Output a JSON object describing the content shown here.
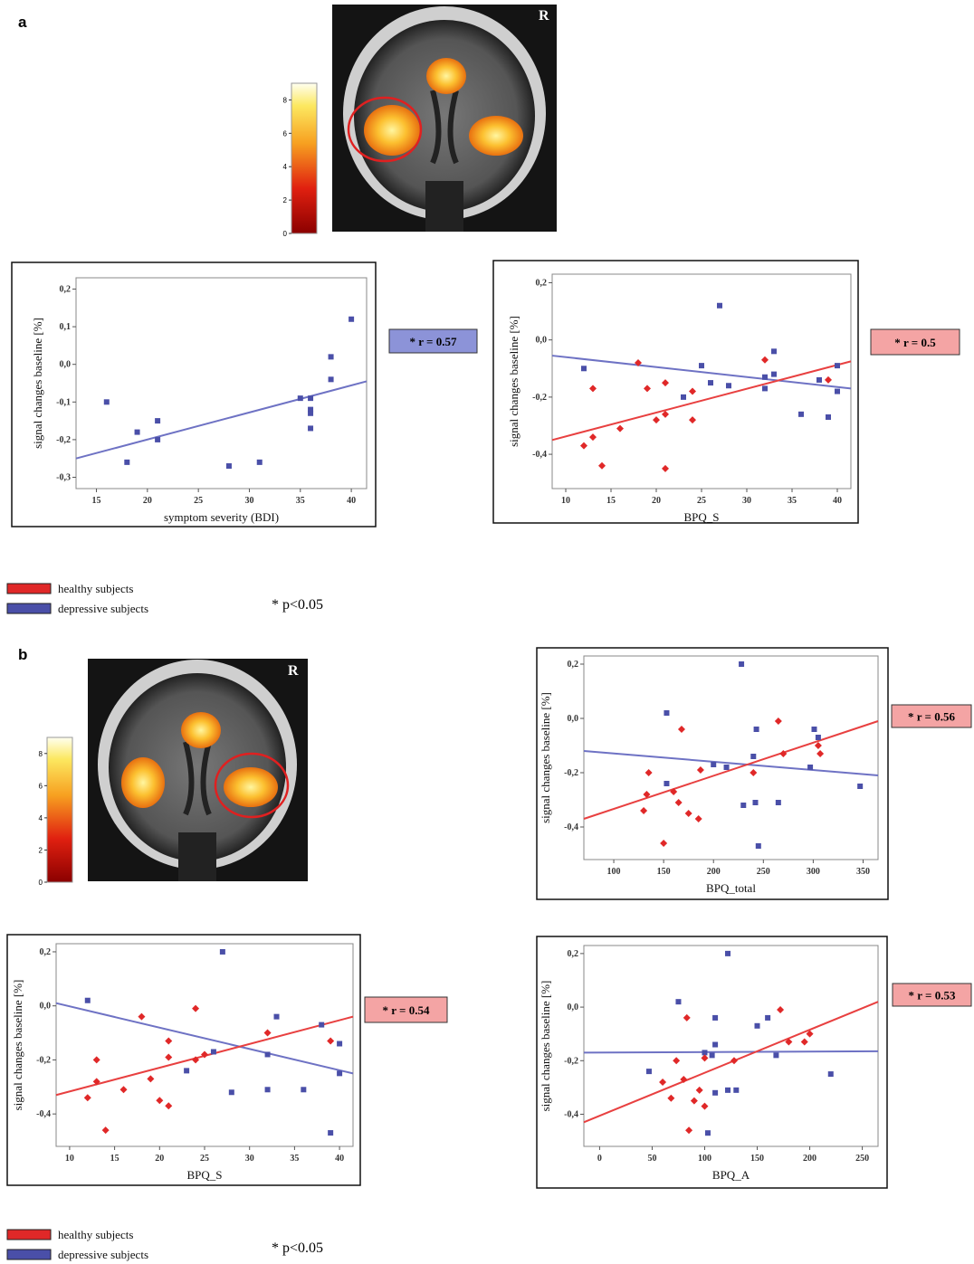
{
  "panels": [
    {
      "label": "a",
      "brain_label": "R",
      "colorbar_lim": [
        0,
        9
      ],
      "colorbar_ticks": [
        0,
        2,
        4,
        6,
        8
      ],
      "legend": [
        {
          "label": "healthy subjects",
          "color": "#e02828"
        },
        {
          "label": "depressive subjects",
          "color": "#4a4fa8"
        }
      ],
      "note": "* p<0.05"
    },
    {
      "label": "b",
      "brain_label": "R",
      "colorbar_lim": [
        0,
        9
      ],
      "colorbar_ticks": [
        0,
        2,
        4,
        6,
        8
      ],
      "legend": [
        {
          "label": "healthy subjects",
          "color": "#e02828"
        },
        {
          "label": "depressive subjects",
          "color": "#4a4fa8"
        }
      ],
      "note": "* p<0.05"
    }
  ],
  "chart_data": [
    {
      "type": "scatter",
      "x_label": "symptom severity (BDI)",
      "y_label": "signal changes baseline [%]",
      "xlim": [
        13,
        41.5
      ],
      "xticks": [
        15,
        20,
        25,
        30,
        35,
        40
      ],
      "ylim": [
        -0.33,
        0.23
      ],
      "yticks": [
        {
          "value": 0.2,
          "label": "0,2"
        },
        {
          "value": 0.1,
          "label": "0,1"
        },
        {
          "value": 0,
          "label": "0,0"
        },
        {
          "value": -0.1,
          "label": "-0,1"
        },
        {
          "value": -0.2,
          "label": "-0,2"
        },
        {
          "value": -0.3,
          "label": "-0,3"
        }
      ],
      "series": [
        {
          "color": "#4a4fa8",
          "marker": "square",
          "x": [
            16,
            18,
            19,
            21,
            21,
            28,
            31,
            35,
            36,
            36,
            36,
            36,
            38,
            38,
            40
          ],
          "y": [
            -0.1,
            -0.26,
            -0.18,
            -0.15,
            -0.2,
            -0.27,
            -0.26,
            -0.09,
            -0.09,
            -0.12,
            -0.13,
            -0.17,
            0.02,
            -0.04,
            0.12
          ]
        }
      ],
      "fit_lines": [
        {
          "color": "#6e72c4",
          "x": [
            13,
            41.5
          ],
          "y": [
            -0.25,
            -0.045
          ]
        }
      ],
      "annotation": {
        "text": "* r = 0.57",
        "color": "#8c93d8"
      }
    },
    {
      "type": "scatter",
      "x_label": "BPQ_S",
      "y_label": "signal changes baseline [%]",
      "xlim": [
        8.5,
        41.5
      ],
      "xticks": [
        10,
        15,
        20,
        25,
        30,
        35,
        40
      ],
      "ylim": [
        -0.52,
        0.23
      ],
      "yticks": [
        {
          "value": 0.2,
          "label": "0,2"
        },
        {
          "value": 0,
          "label": "0,0"
        },
        {
          "value": -0.2,
          "label": "-0,2"
        },
        {
          "value": -0.4,
          "label": "-0,4"
        }
      ],
      "series": [
        {
          "color": "#4a4fa8",
          "marker": "square",
          "x": [
            12,
            23,
            25,
            26,
            27,
            28,
            32,
            32,
            33,
            33,
            36,
            38,
            39,
            40,
            40
          ],
          "y": [
            -0.1,
            -0.2,
            -0.09,
            -0.15,
            0.12,
            -0.16,
            -0.17,
            -0.13,
            -0.12,
            -0.04,
            -0.26,
            -0.14,
            -0.27,
            -0.18,
            -0.09
          ]
        },
        {
          "color": "#e02828",
          "marker": "diamond",
          "x": [
            12,
            13,
            13,
            14,
            16,
            18,
            19,
            20,
            21,
            21,
            21,
            24,
            24,
            32,
            39
          ],
          "y": [
            -0.37,
            -0.17,
            -0.34,
            -0.44,
            -0.31,
            -0.08,
            -0.17,
            -0.28,
            -0.26,
            -0.15,
            -0.45,
            -0.28,
            -0.18,
            -0.07,
            -0.14
          ]
        }
      ],
      "fit_lines": [
        {
          "color": "#6e72c4",
          "x": [
            8.5,
            41.5
          ],
          "y": [
            -0.055,
            -0.17
          ]
        },
        {
          "color": "#e84040",
          "x": [
            8.5,
            41.5
          ],
          "y": [
            -0.35,
            -0.075
          ]
        }
      ],
      "annotation": {
        "text": "* r = 0.5",
        "color": "#f4a4a4"
      }
    },
    {
      "type": "scatter",
      "x_label": "BPQ_total",
      "y_label": "signal changes baseline [%]",
      "xlim": [
        70,
        365
      ],
      "xticks": [
        100,
        150,
        200,
        250,
        300,
        350
      ],
      "ylim": [
        -0.52,
        0.23
      ],
      "yticks": [
        {
          "value": 0.2,
          "label": "0,2"
        },
        {
          "value": 0,
          "label": "0,0"
        },
        {
          "value": -0.2,
          "label": "-0,2"
        },
        {
          "value": -0.4,
          "label": "-0,4"
        }
      ],
      "series": [
        {
          "color": "#4a4fa8",
          "marker": "square",
          "x": [
            153,
            153,
            200,
            213,
            228,
            230,
            240,
            242,
            243,
            245,
            265,
            297,
            301,
            305,
            347
          ],
          "y": [
            0.02,
            -0.24,
            -0.17,
            -0.18,
            0.2,
            -0.32,
            -0.14,
            -0.31,
            -0.04,
            -0.47,
            -0.31,
            -0.18,
            -0.04,
            -0.07,
            -0.25
          ]
        },
        {
          "color": "#e02828",
          "marker": "diamond",
          "x": [
            130,
            133,
            135,
            150,
            160,
            165,
            168,
            175,
            185,
            187,
            240,
            265,
            270,
            305,
            307
          ],
          "y": [
            -0.34,
            -0.28,
            -0.2,
            -0.46,
            -0.27,
            -0.31,
            -0.04,
            -0.35,
            -0.37,
            -0.19,
            -0.2,
            -0.01,
            -0.13,
            -0.1,
            -0.13
          ]
        }
      ],
      "fit_lines": [
        {
          "color": "#6e72c4",
          "x": [
            70,
            365
          ],
          "y": [
            -0.12,
            -0.21
          ]
        },
        {
          "color": "#e84040",
          "x": [
            70,
            365
          ],
          "y": [
            -0.37,
            -0.01
          ]
        }
      ],
      "annotation": {
        "text": "* r = 0.56",
        "color": "#f4a4a4"
      }
    },
    {
      "type": "scatter",
      "x_label": "BPQ_S",
      "y_label": "signal changes baseline [%]",
      "xlim": [
        8.5,
        41.5
      ],
      "xticks": [
        10,
        15,
        20,
        25,
        30,
        35,
        40
      ],
      "ylim": [
        -0.52,
        0.23
      ],
      "yticks": [
        {
          "value": 0.2,
          "label": "0,2"
        },
        {
          "value": 0,
          "label": "0,0"
        },
        {
          "value": -0.2,
          "label": "-0,2"
        },
        {
          "value": -0.4,
          "label": "-0,4"
        }
      ],
      "series": [
        {
          "color": "#4a4fa8",
          "marker": "square",
          "x": [
            12,
            23,
            26,
            27,
            28,
            32,
            32,
            33,
            36,
            38,
            39,
            40,
            40
          ],
          "y": [
            0.02,
            -0.24,
            -0.17,
            0.2,
            -0.32,
            -0.18,
            -0.31,
            -0.04,
            -0.31,
            -0.07,
            -0.47,
            -0.14,
            -0.25
          ]
        },
        {
          "color": "#e02828",
          "marker": "diamond",
          "x": [
            12,
            13,
            13,
            14,
            16,
            18,
            19,
            20,
            21,
            21,
            21,
            24,
            24,
            25,
            32,
            39
          ],
          "y": [
            -0.34,
            -0.28,
            -0.2,
            -0.46,
            -0.31,
            -0.04,
            -0.27,
            -0.35,
            -0.37,
            -0.19,
            -0.13,
            -0.01,
            -0.2,
            -0.18,
            -0.1,
            -0.13
          ]
        }
      ],
      "fit_lines": [
        {
          "color": "#6e72c4",
          "x": [
            8.5,
            41.5
          ],
          "y": [
            0.01,
            -0.25
          ]
        },
        {
          "color": "#e84040",
          "x": [
            8.5,
            41.5
          ],
          "y": [
            -0.33,
            -0.04
          ]
        }
      ],
      "annotation": {
        "text": "* r = 0.54",
        "color": "#f4a4a4"
      }
    },
    {
      "type": "scatter",
      "x_label": "BPQ_A",
      "y_label": "signal changes baseline [%]",
      "xlim": [
        -15,
        265
      ],
      "xticks": [
        0,
        50,
        100,
        150,
        200,
        250
      ],
      "ylim": [
        -0.52,
        0.23
      ],
      "yticks": [
        {
          "value": 0.2,
          "label": "0,2"
        },
        {
          "value": 0,
          "label": "0,0"
        },
        {
          "value": -0.2,
          "label": "-0,2"
        },
        {
          "value": -0.4,
          "label": "-0,4"
        }
      ],
      "series": [
        {
          "color": "#4a4fa8",
          "marker": "square",
          "x": [
            47,
            75,
            100,
            103,
            107,
            110,
            110,
            110,
            122,
            122,
            130,
            150,
            160,
            168,
            220
          ],
          "y": [
            -0.24,
            0.02,
            -0.17,
            -0.47,
            -0.18,
            -0.14,
            -0.04,
            -0.32,
            0.2,
            -0.31,
            -0.31,
            -0.07,
            -0.04,
            -0.18,
            -0.25
          ]
        },
        {
          "color": "#e02828",
          "marker": "diamond",
          "x": [
            60,
            68,
            73,
            80,
            83,
            85,
            90,
            95,
            100,
            100,
            128,
            172,
            180,
            195,
            200
          ],
          "y": [
            -0.28,
            -0.34,
            -0.2,
            -0.27,
            -0.04,
            -0.46,
            -0.35,
            -0.31,
            -0.37,
            -0.19,
            -0.2,
            -0.01,
            -0.13,
            -0.13,
            -0.1
          ]
        }
      ],
      "fit_lines": [
        {
          "color": "#6e72c4",
          "x": [
            -15,
            265
          ],
          "y": [
            -0.17,
            -0.165
          ]
        },
        {
          "color": "#e84040",
          "x": [
            -15,
            265
          ],
          "y": [
            -0.43,
            0.02
          ]
        }
      ],
      "annotation": {
        "text": "* r = 0.53",
        "color": "#f4a4a4"
      }
    }
  ]
}
